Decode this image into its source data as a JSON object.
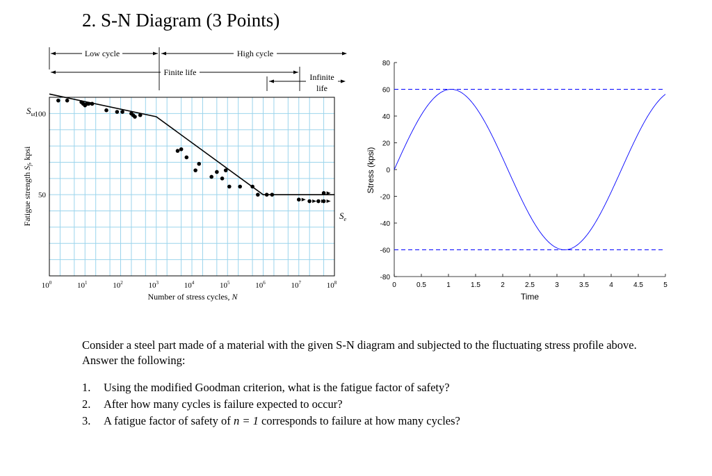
{
  "heading": "2. S-N Diagram (3 Points)",
  "sn_diagram": {
    "region_labels": {
      "low_cycle": "Low cycle",
      "high_cycle": "High cycle",
      "finite_life": "Finite life",
      "infinite_line1": "Infinite",
      "infinite_line2": "life"
    },
    "y_special_labels": {
      "sut_main": "S",
      "sut_sub": "ut",
      "se_main": "S",
      "se_sub": "e"
    },
    "ylabel_parts": {
      "p1": "Fatigue strength ",
      "s": "S",
      "f": "f",
      "p2": ", kpsi"
    },
    "xlabel_parts": {
      "p1": "Number of stress cycles, ",
      "n": "N"
    }
  },
  "chart_data": [
    {
      "type": "scatter",
      "xscale": "log",
      "xlim": [
        1,
        100000000
      ],
      "ylim": [
        0,
        110
      ],
      "xlabel": "Number of stress cycles, N",
      "ylabel": "Fatigue strength Sf, kpsi",
      "x_ticks": [
        {
          "base": "10",
          "exp": "0"
        },
        {
          "base": "10",
          "exp": "1"
        },
        {
          "base": "10",
          "exp": "2"
        },
        {
          "base": "10",
          "exp": "3"
        },
        {
          "base": "10",
          "exp": "4"
        },
        {
          "base": "10",
          "exp": "5"
        },
        {
          "base": "10",
          "exp": "6"
        },
        {
          "base": "10",
          "exp": "7"
        },
        {
          "base": "10",
          "exp": "8"
        }
      ],
      "y_ticks": [
        "50",
        "100"
      ],
      "grid": true,
      "curve": [
        {
          "log_n": 0,
          "s": 112
        },
        {
          "log_n": 3,
          "s": 98
        },
        {
          "log_n": 6,
          "s": 50
        },
        {
          "log_n": 8,
          "s": 50
        }
      ],
      "points": [
        {
          "log_n": 0.25,
          "s": 108
        },
        {
          "log_n": 0.5,
          "s": 108
        },
        {
          "log_n": 0.9,
          "s": 107
        },
        {
          "log_n": 0.95,
          "s": 106
        },
        {
          "log_n": 1.0,
          "s": 105
        },
        {
          "log_n": 1.05,
          "s": 106
        },
        {
          "log_n": 1.1,
          "s": 106
        },
        {
          "log_n": 1.2,
          "s": 106
        },
        {
          "log_n": 1.6,
          "s": 102
        },
        {
          "log_n": 1.9,
          "s": 101
        },
        {
          "log_n": 2.05,
          "s": 101
        },
        {
          "log_n": 2.3,
          "s": 100
        },
        {
          "log_n": 2.4,
          "s": 98
        },
        {
          "log_n": 2.55,
          "s": 99
        },
        {
          "log_n": 2.35,
          "s": 99
        },
        {
          "log_n": 3.6,
          "s": 77
        },
        {
          "log_n": 3.7,
          "s": 78
        },
        {
          "log_n": 3.85,
          "s": 73
        },
        {
          "log_n": 4.2,
          "s": 69
        },
        {
          "log_n": 4.1,
          "s": 65
        },
        {
          "log_n": 4.55,
          "s": 61
        },
        {
          "log_n": 4.7,
          "s": 64
        },
        {
          "log_n": 4.95,
          "s": 65
        },
        {
          "log_n": 4.85,
          "s": 60
        },
        {
          "log_n": 5.05,
          "s": 55
        },
        {
          "log_n": 5.35,
          "s": 55
        },
        {
          "log_n": 5.7,
          "s": 55
        },
        {
          "log_n": 5.85,
          "s": 50
        },
        {
          "log_n": 6.1,
          "s": 50
        },
        {
          "log_n": 6.25,
          "s": 50
        },
        {
          "log_n": 7.0,
          "s": 47
        },
        {
          "log_n": 7.3,
          "s": 46
        },
        {
          "log_n": 7.55,
          "s": 46
        },
        {
          "log_n": 7.7,
          "s": 46
        },
        {
          "log_n": 7.7,
          "s": 51
        }
      ]
    },
    {
      "type": "line",
      "xlim": [
        0,
        5
      ],
      "ylim": [
        -80,
        80
      ],
      "xlabel": "Time",
      "ylabel": "Stress (kpsi)",
      "x_ticks": [
        "0",
        "0.5",
        "1",
        "1.5",
        "2",
        "2.5",
        "3",
        "3.5",
        "4",
        "4.5",
        "5"
      ],
      "y_ticks": [
        "80",
        "60",
        "40",
        "20",
        "0",
        "-20",
        "-40",
        "-60",
        "-80"
      ],
      "series": [
        {
          "function": "60*sin(1.5*t)",
          "color": "#0000ff",
          "x_range": [
            0,
            5
          ]
        }
      ],
      "reference_lines": [
        {
          "y": 60,
          "style": "dashed",
          "color": "#0000ff"
        },
        {
          "y": -60,
          "style": "dashed",
          "color": "#0000ff"
        }
      ],
      "grid": false
    }
  ],
  "problem": {
    "intro": "Consider a steel part made of a material with the given S-N diagram and subjected to the fluctuating stress profile above. Answer the following:",
    "questions": [
      {
        "num": "1.",
        "text": "Using the modified Goodman criterion, what is the fatigue factor of safety?"
      },
      {
        "num": "2.",
        "text": "After how many cycles is failure expected to occur?"
      },
      {
        "num": "3.",
        "text_before": "A fatigue factor of safety of ",
        "math": "n = 1",
        "text_after": " corresponds to failure at how many cycles?"
      }
    ]
  }
}
